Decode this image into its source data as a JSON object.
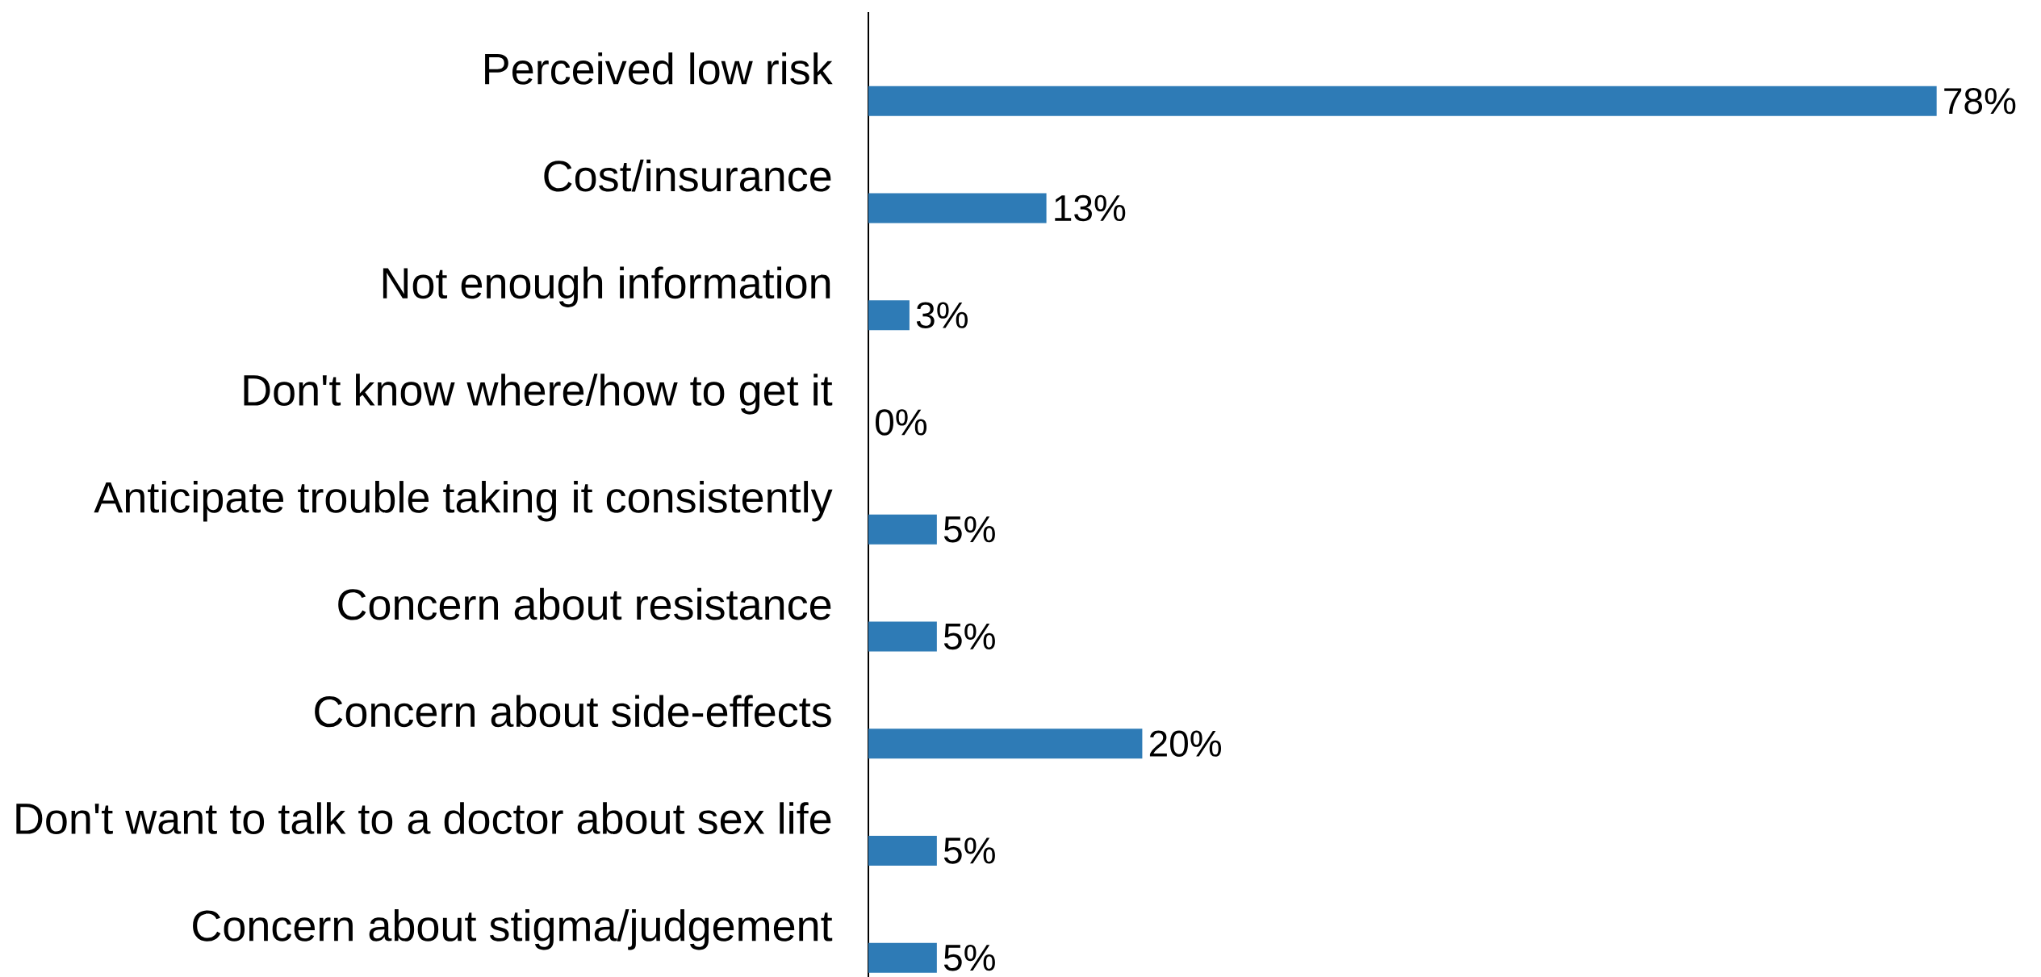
{
  "chart_data": {
    "type": "bar",
    "orientation": "horizontal",
    "categories": [
      "Perceived low risk",
      "Cost/insurance",
      "Not enough information",
      "Don't know where/how to get it",
      "Anticipate trouble taking it consistently",
      "Concern about resistance",
      "Concern about side-effects",
      "Don't want to talk to a doctor about sex life",
      "Concern about stigma/judgement"
    ],
    "values": [
      78,
      13,
      3,
      0,
      5,
      5,
      20,
      5,
      5
    ],
    "value_labels": [
      "78%",
      "13%",
      "3%",
      "0%",
      "5%",
      "5%",
      "20%",
      "5%",
      "5%"
    ],
    "color": "#2e7bb6",
    "tick_labels": "y"
  }
}
